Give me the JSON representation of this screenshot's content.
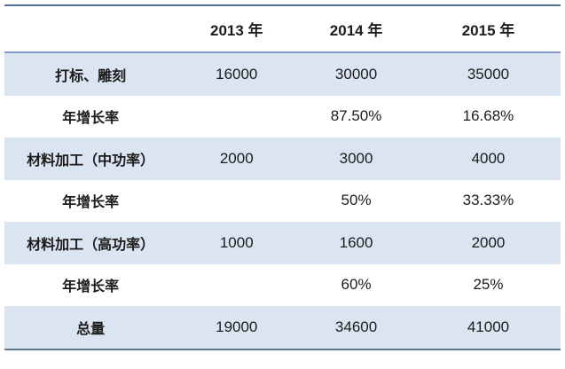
{
  "colors": {
    "band_fill": "#dbe4f1",
    "outer_border": "#54749c",
    "header_rule": "#8497c0",
    "text": "#1c1c1c",
    "background": "#ffffff"
  },
  "chart_data": {
    "type": "table",
    "title": "",
    "columns": [
      "",
      "2013 年",
      "2014 年",
      "2015 年"
    ],
    "rows": [
      {
        "label": "打标、雕刻",
        "values": [
          "16000",
          "30000",
          "35000"
        ]
      },
      {
        "label": "年增长率",
        "values": [
          "",
          "87.50%",
          "16.68%"
        ]
      },
      {
        "label": "材料加工（中功率）",
        "values": [
          "2000",
          "3000",
          "4000"
        ]
      },
      {
        "label": "年增长率",
        "values": [
          "",
          "50%",
          "33.33%"
        ]
      },
      {
        "label": "材料加工（高功率）",
        "values": [
          "1000",
          "1600",
          "2000"
        ]
      },
      {
        "label": "年增长率",
        "values": [
          "",
          "60%",
          "25%"
        ]
      },
      {
        "label": "总量",
        "values": [
          "19000",
          "34600",
          "41000"
        ]
      }
    ],
    "layout": {
      "banded_rows": "odd rows shaded light blue",
      "borders": "top rule, header underline, bottom rule only; no vertical lines"
    }
  }
}
